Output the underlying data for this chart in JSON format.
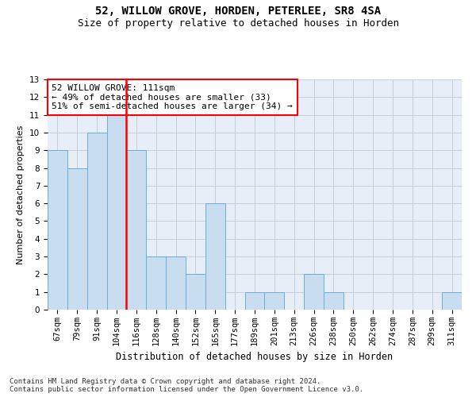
{
  "title1": "52, WILLOW GROVE, HORDEN, PETERLEE, SR8 4SA",
  "title2": "Size of property relative to detached houses in Horden",
  "xlabel": "Distribution of detached houses by size in Horden",
  "ylabel": "Number of detached properties",
  "categories": [
    "67sqm",
    "79sqm",
    "91sqm",
    "104sqm",
    "116sqm",
    "128sqm",
    "140sqm",
    "152sqm",
    "165sqm",
    "177sqm",
    "189sqm",
    "201sqm",
    "213sqm",
    "226sqm",
    "238sqm",
    "250sqm",
    "262sqm",
    "274sqm",
    "287sqm",
    "299sqm",
    "311sqm"
  ],
  "values": [
    9,
    8,
    10,
    11,
    9,
    3,
    3,
    2,
    6,
    0,
    1,
    1,
    0,
    2,
    1,
    0,
    0,
    0,
    0,
    0,
    1
  ],
  "bar_color": "#c8ddf0",
  "bar_edge_color": "#6aaed6",
  "grid_color": "#c5cfe0",
  "background_color": "#e8eef8",
  "vline_color": "red",
  "annotation_text": "52 WILLOW GROVE: 111sqm\n← 49% of detached houses are smaller (33)\n51% of semi-detached houses are larger (34) →",
  "annotation_box_color": "red",
  "ylim": [
    0,
    13
  ],
  "yticks": [
    0,
    1,
    2,
    3,
    4,
    5,
    6,
    7,
    8,
    9,
    10,
    11,
    12,
    13
  ],
  "footer": "Contains HM Land Registry data © Crown copyright and database right 2024.\nContains public sector information licensed under the Open Government Licence v3.0.",
  "title1_fontsize": 10,
  "title2_fontsize": 9,
  "xlabel_fontsize": 8.5,
  "ylabel_fontsize": 8,
  "tick_fontsize": 7.5,
  "annotation_fontsize": 8,
  "footer_fontsize": 6.5
}
